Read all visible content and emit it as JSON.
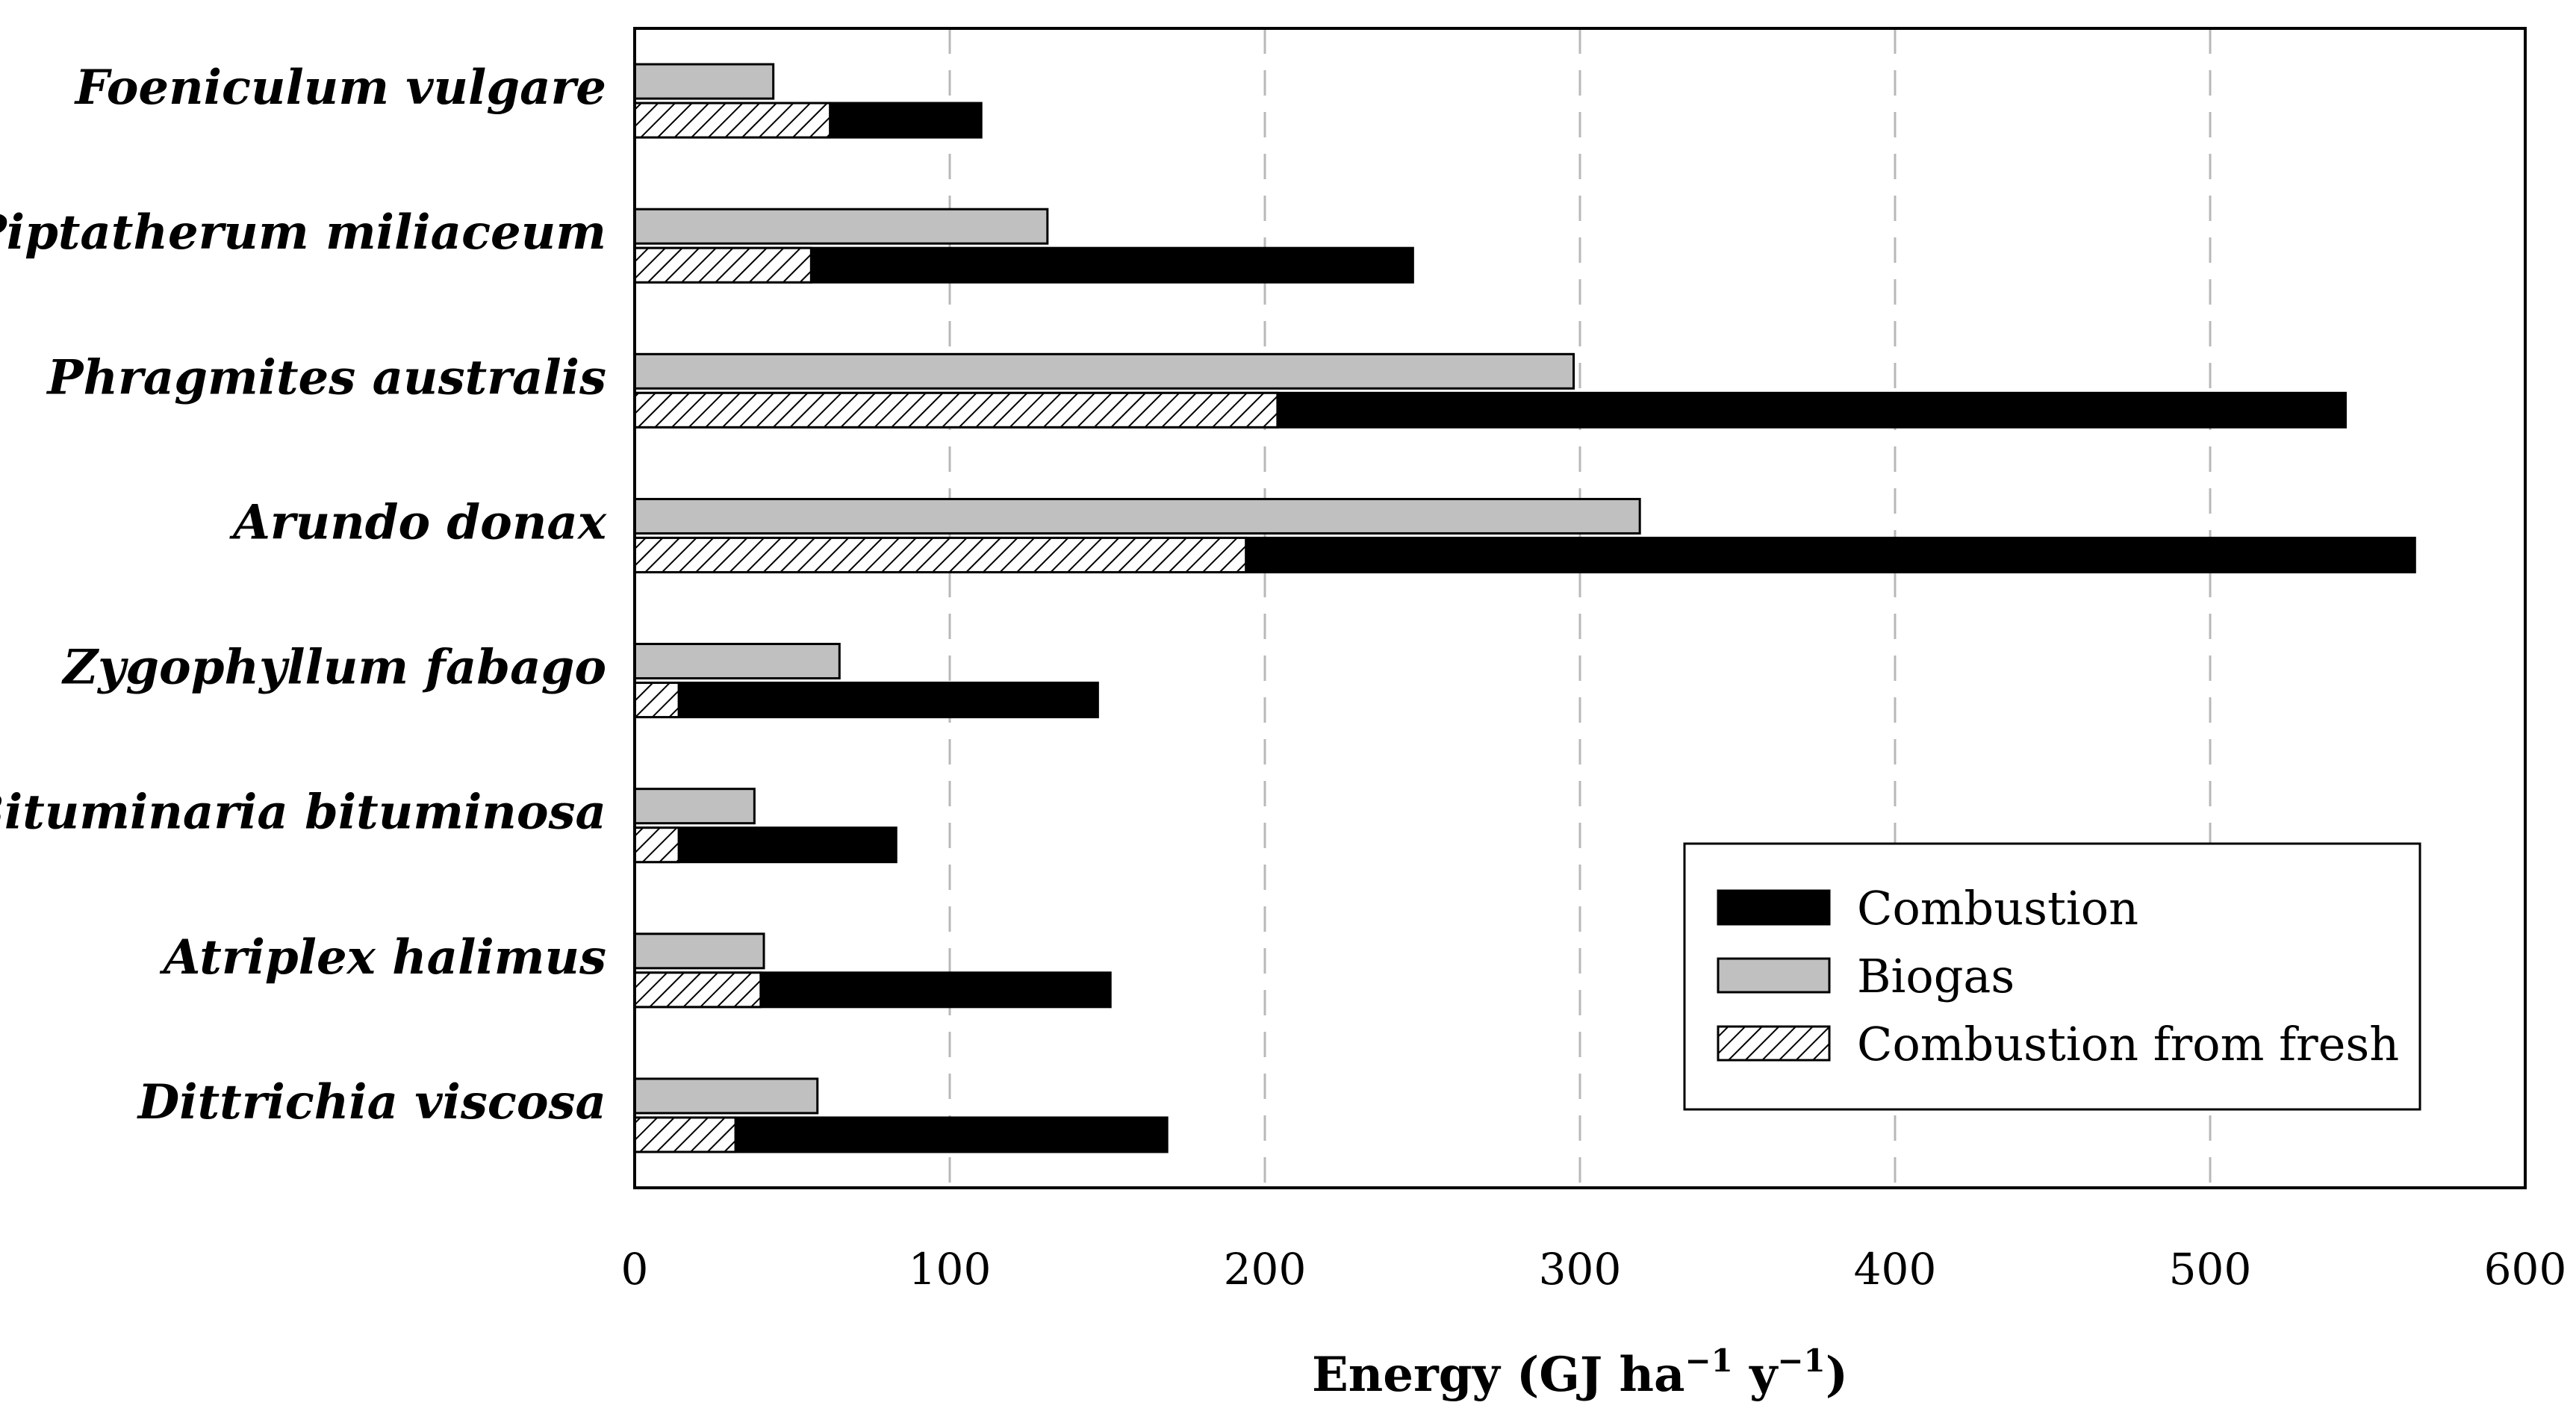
{
  "chart_data": {
    "type": "bar",
    "orientation": "horizontal",
    "title": "",
    "xlabel": "Energy (GJ ha⁻¹ y⁻¹)",
    "xlabel_parts": [
      "Energy (GJ ha",
      "−1",
      " y",
      "−1",
      ")"
    ],
    "ylabel": "",
    "xlim": [
      0,
      600
    ],
    "xticks": [
      0,
      100,
      200,
      300,
      400,
      500,
      600
    ],
    "grid": "vertical dashed",
    "legend_position": "lower-right",
    "categories": [
      "Foeniculum vulgare",
      "Piptatherum miliaceum",
      "Phragmites australis",
      "Arundo donax",
      "Zygophyllum fabago",
      "Bituminaria bituminosa",
      "Atriplex halimus",
      "Dittrichia viscosa"
    ],
    "series": [
      {
        "name": "Combustion",
        "style": "solid",
        "color": "#000000",
        "values": [
          110,
          247,
          543,
          565,
          147,
          83,
          151,
          169
        ]
      },
      {
        "name": "Biogas",
        "style": "solid",
        "color": "#c0c0c0",
        "values": [
          44,
          131,
          298,
          319,
          65,
          38,
          41,
          58
        ]
      },
      {
        "name": "Combustion from fresh",
        "style": "hatched",
        "color": "#ffffff",
        "values": [
          62,
          56,
          204,
          194,
          14,
          14,
          40,
          32
        ]
      }
    ]
  }
}
